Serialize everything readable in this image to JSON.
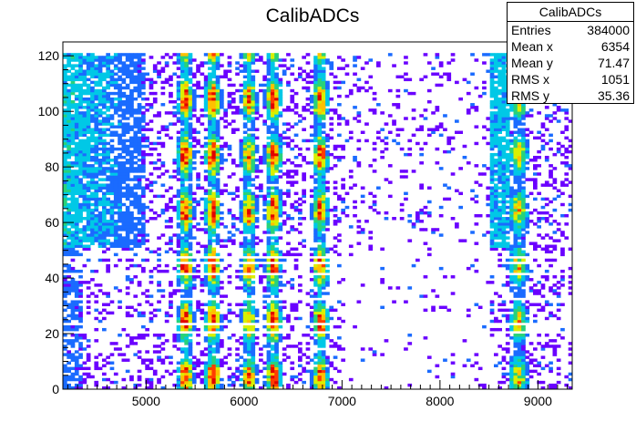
{
  "chart_data": {
    "type": "heatmap",
    "title": "CalibADCs",
    "xlabel": "",
    "ylabel": "",
    "xlim": [
      4150,
      9350
    ],
    "ylim": [
      0,
      125
    ],
    "x_ticks": [
      5000,
      6000,
      7000,
      8000,
      9000
    ],
    "y_ticks": [
      0,
      20,
      40,
      60,
      80,
      100,
      120
    ],
    "colorscale": [
      "#6a00ff",
      "#1a6bff",
      "#00c8e6",
      "#28d27a",
      "#d8f000",
      "#ffc000",
      "#ff3c00",
      "#e00000"
    ],
    "vertical_bands": [
      {
        "center": 5400,
        "peak": 0.95
      },
      {
        "center": 5680,
        "peak": 0.95
      },
      {
        "center": 6050,
        "peak": 0.85
      },
      {
        "center": 6300,
        "peak": 0.95
      },
      {
        "center": 6780,
        "peak": 0.9
      },
      {
        "center": 8800,
        "peak": 0.7
      }
    ],
    "empty_rows": [
      47,
      45,
      41,
      32,
      23,
      20
    ],
    "stats": {
      "name": "CalibADCs",
      "rows": [
        {
          "label": "Entries",
          "value": "384000"
        },
        {
          "label": "Mean x",
          "value": "6354"
        },
        {
          "label": "Mean y",
          "value": "71.47"
        },
        {
          "label": "RMS x",
          "value": "1051"
        },
        {
          "label": "RMS y",
          "value": "35.36"
        }
      ]
    }
  }
}
